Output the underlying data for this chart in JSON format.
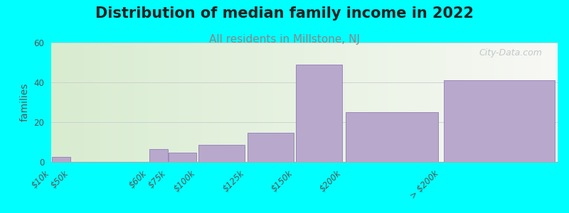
{
  "title": "Distribution of median family income in 2022",
  "subtitle": "All residents in Millstone, NJ",
  "ylabel": "families",
  "background_color": "#00FFFF",
  "plot_bg_gradient_left": "#d8ecd0",
  "plot_bg_gradient_right": "#f8f8f5",
  "bar_color": "#b8a8cc",
  "bar_edge_color": "#9988bb",
  "categories": [
    "$10k",
    "$50k",
    "$60k",
    "$75k",
    "$100k",
    "$125k",
    "$150k",
    "$200k",
    "> $200k"
  ],
  "values": [
    2.5,
    0,
    6.5,
    4.5,
    8.5,
    14.5,
    49,
    25,
    41
  ],
  "bin_edges": [
    0,
    10,
    50,
    60,
    75,
    100,
    125,
    150,
    200,
    260
  ],
  "ylim": [
    0,
    60
  ],
  "yticks": [
    0,
    20,
    40,
    60
  ],
  "watermark": "City-Data.com",
  "title_fontsize": 15,
  "subtitle_fontsize": 11,
  "title_color": "#222222",
  "subtitle_color": "#888888",
  "ylabel_fontsize": 10,
  "tick_label_fontsize": 8.5
}
